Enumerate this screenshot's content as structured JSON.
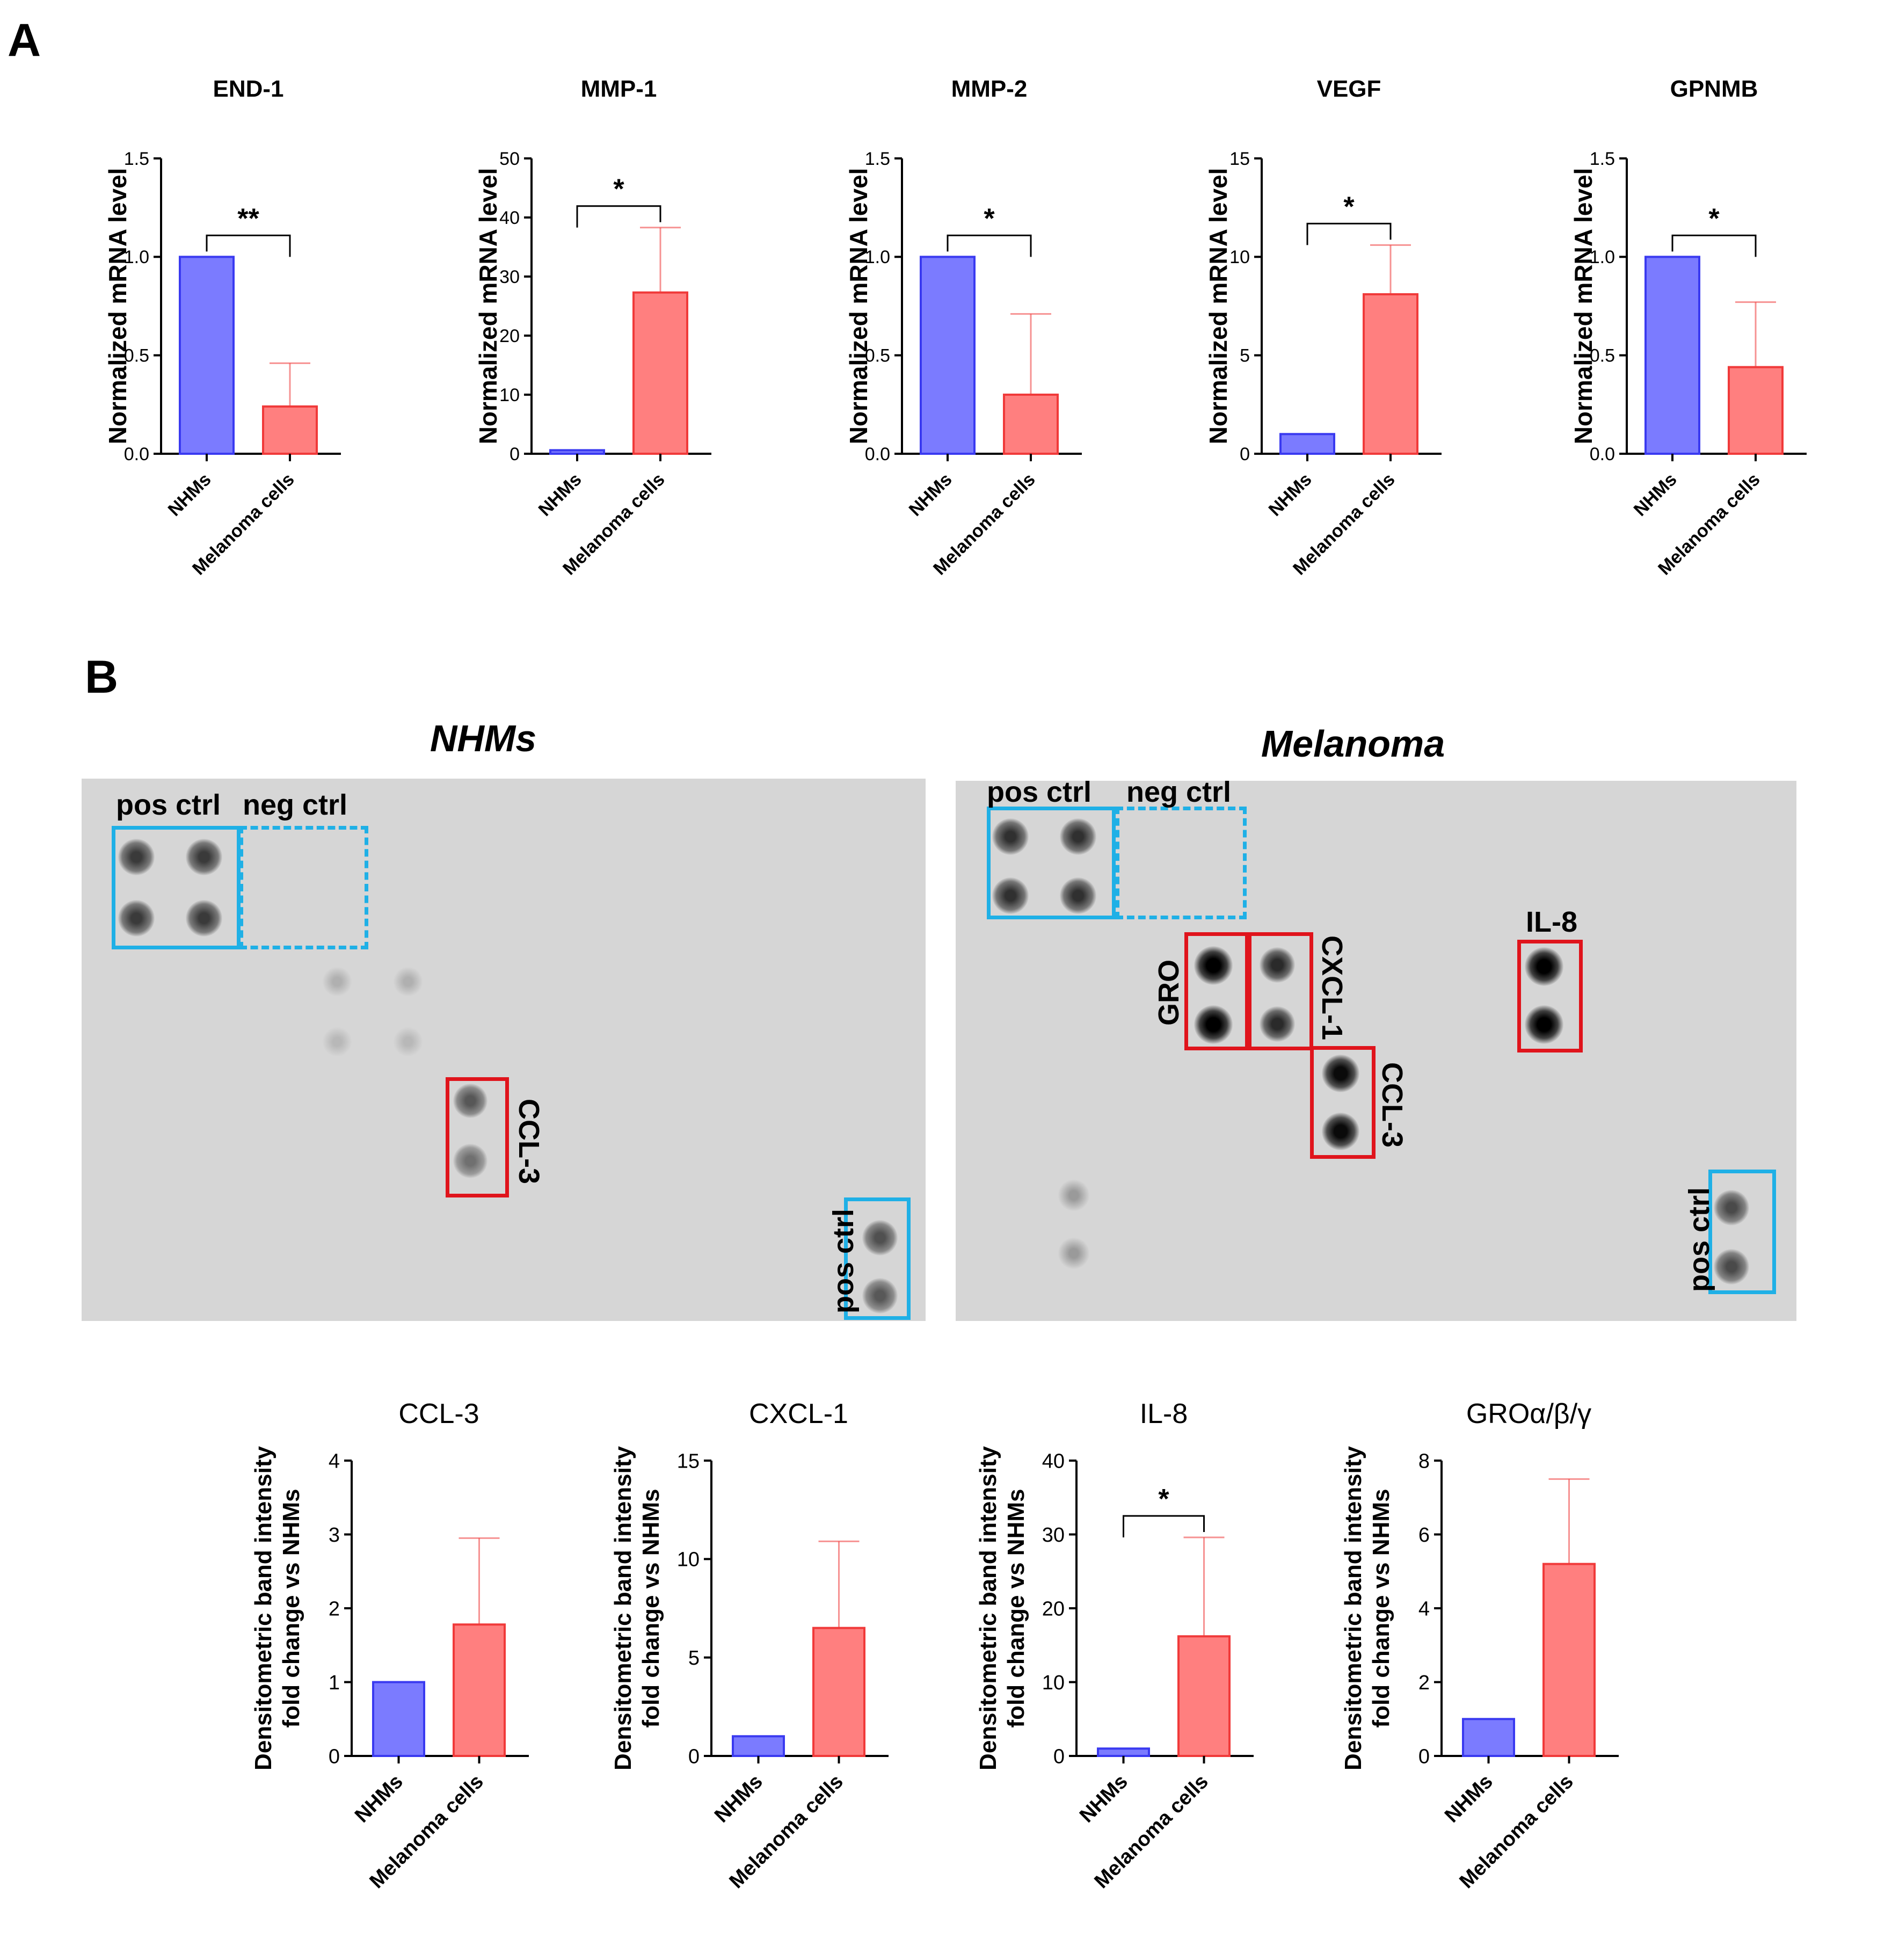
{
  "panels": {
    "a_label": "A",
    "b_label": "B"
  },
  "colors": {
    "nhms": "#7b7bff",
    "nhms_stroke": "#3a3af0",
    "melanoma": "#ff7f7f",
    "melanoma_stroke": "#f03a3a",
    "blue_box": "#1fb0e6",
    "red_box": "#e0141c"
  },
  "blots": {
    "nhms": {
      "title": "NHMs",
      "labels": {
        "pos_ctrl": "pos ctrl",
        "neg_ctrl": "neg ctrl",
        "ccl3": "CCL-3",
        "pos_ctrl_bottom": "pos ctrl"
      }
    },
    "melanoma": {
      "title": "Melanoma",
      "labels": {
        "pos_ctrl": "pos ctrl",
        "neg_ctrl": "neg ctrl",
        "gro": "GRO",
        "cxcl1": "CXCL-1",
        "il8": "IL-8",
        "ccl3": "CCL-3",
        "pos_ctrl_bottom": "pos ctrl"
      }
    }
  },
  "chart_data": [
    {
      "type": "bar",
      "title": "END-1",
      "ylabel": "Normalized mRNA level",
      "categories": [
        "NHMs",
        "Melanoma cells"
      ],
      "values": [
        1.0,
        0.24
      ],
      "errors": [
        0,
        0.22
      ],
      "ylim": [
        0,
        1.5
      ],
      "yticks": [
        "0.0",
        "0.5",
        "1.0",
        "1.5"
      ],
      "significance": "**"
    },
    {
      "type": "bar",
      "title": "MMP-1",
      "ylabel": "Normalized mRNA level",
      "categories": [
        "NHMs",
        "Melanoma cells"
      ],
      "values": [
        0.6,
        27.3
      ],
      "errors": [
        0,
        11.0
      ],
      "ylim": [
        0,
        50
      ],
      "yticks": [
        "0",
        "10",
        "20",
        "30",
        "40",
        "50"
      ],
      "significance": "*"
    },
    {
      "type": "bar",
      "title": "MMP-2",
      "ylabel": "Normalized mRNA level",
      "categories": [
        "NHMs",
        "Melanoma cells"
      ],
      "values": [
        1.0,
        0.3
      ],
      "errors": [
        0,
        0.41
      ],
      "ylim": [
        0,
        1.5
      ],
      "yticks": [
        "0.0",
        "0.5",
        "1.0",
        "1.5"
      ],
      "significance": "*"
    },
    {
      "type": "bar",
      "title": "VEGF",
      "ylabel": "Normalized mRNA level",
      "categories": [
        "NHMs",
        "Melanoma cells"
      ],
      "values": [
        1.0,
        8.1
      ],
      "errors": [
        0,
        2.5
      ],
      "ylim": [
        0,
        15
      ],
      "yticks": [
        "0",
        "5",
        "10",
        "15"
      ],
      "significance": "*"
    },
    {
      "type": "bar",
      "title": "GPNMB",
      "ylabel": "Normalized mRNA level",
      "categories": [
        "NHMs",
        "Melanoma cells"
      ],
      "values": [
        1.0,
        0.44
      ],
      "errors": [
        0,
        0.33
      ],
      "ylim": [
        0,
        1.5
      ],
      "yticks": [
        "0.0",
        "0.5",
        "1.0",
        "1.5"
      ],
      "significance": "*"
    },
    {
      "type": "bar",
      "title": "CCL-3",
      "ylabel": "Densitometric band intensity\nfold change vs NHMs",
      "categories": [
        "NHMs",
        "Melanoma cells"
      ],
      "values": [
        1.0,
        1.78
      ],
      "errors": [
        0,
        1.17
      ],
      "ylim": [
        0,
        4
      ],
      "yticks": [
        "0",
        "1",
        "2",
        "3",
        "4"
      ],
      "significance": ""
    },
    {
      "type": "bar",
      "title": "CXCL-1",
      "ylabel": "Densitometric band intensity\nfold change vs NHMs",
      "categories": [
        "NHMs",
        "Melanoma cells"
      ],
      "values": [
        1.0,
        6.5
      ],
      "errors": [
        0,
        4.4
      ],
      "ylim": [
        0,
        15
      ],
      "yticks": [
        "0",
        "5",
        "10",
        "15"
      ],
      "significance": ""
    },
    {
      "type": "bar",
      "title": "IL-8",
      "ylabel": "Densitometric band intensity\nfold change vs NHMs",
      "categories": [
        "NHMs",
        "Melanoma cells"
      ],
      "values": [
        1.0,
        16.2
      ],
      "errors": [
        0,
        13.4
      ],
      "ylim": [
        0,
        40
      ],
      "yticks": [
        "0",
        "10",
        "20",
        "30",
        "40"
      ],
      "significance": "*"
    },
    {
      "type": "bar",
      "title": "GROα/β/γ",
      "ylabel": "Densitometric band intensity\nfold change vs NHMs",
      "categories": [
        "NHMs",
        "Melanoma cells"
      ],
      "values": [
        1.0,
        5.2
      ],
      "errors": [
        0,
        2.3
      ],
      "ylim": [
        0,
        8
      ],
      "yticks": [
        "0",
        "2",
        "4",
        "6",
        "8"
      ],
      "significance": ""
    }
  ]
}
